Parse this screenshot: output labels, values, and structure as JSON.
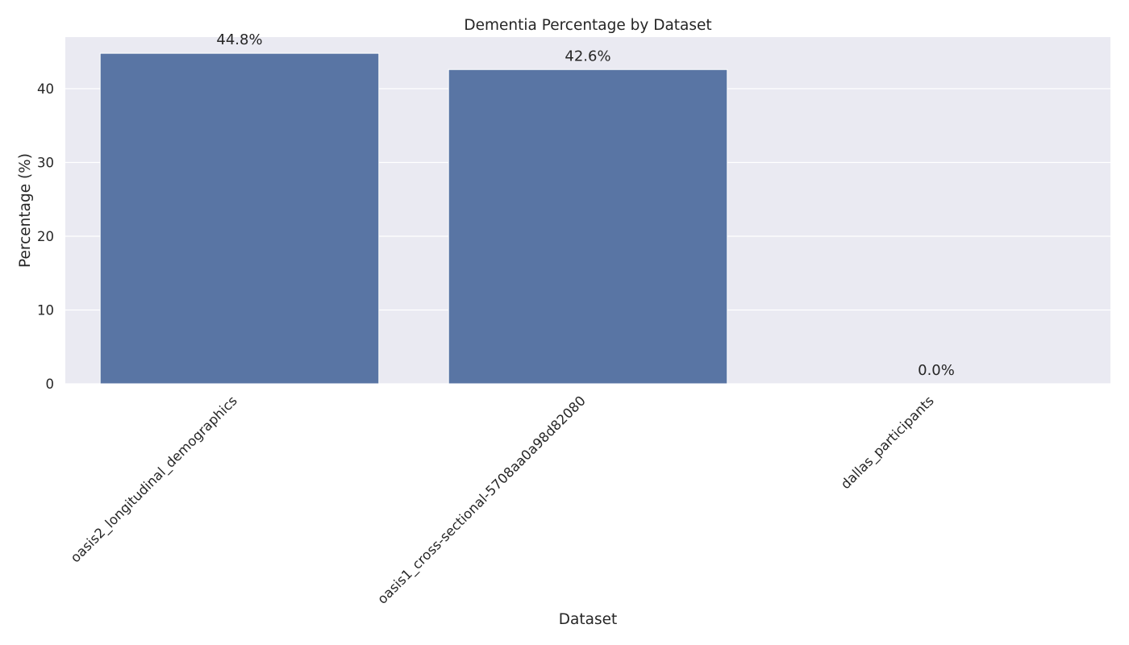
{
  "chart_data": {
    "type": "bar",
    "title": "Dementia Percentage by Dataset",
    "xlabel": "Dataset",
    "ylabel": "Percentage (%)",
    "categories": [
      "oasis2_longitudinal_demographics",
      "oasis1_cross-sectional-5708aa0a98d82080",
      "dallas_participants"
    ],
    "values": [
      44.8,
      42.6,
      0.0
    ],
    "data_labels": [
      "44.8%",
      "42.6%",
      "0.0%"
    ],
    "ylim": [
      0,
      47
    ],
    "yticks": [
      0,
      10,
      20,
      30,
      40
    ],
    "ytick_labels": [
      "0",
      "10",
      "20",
      "30",
      "40"
    ],
    "grid": true,
    "legend": "none",
    "colors": {
      "bar": "#5975a4",
      "plot_background": "#eaeaf2",
      "grid": "#ffffff",
      "text": "#262626"
    }
  }
}
